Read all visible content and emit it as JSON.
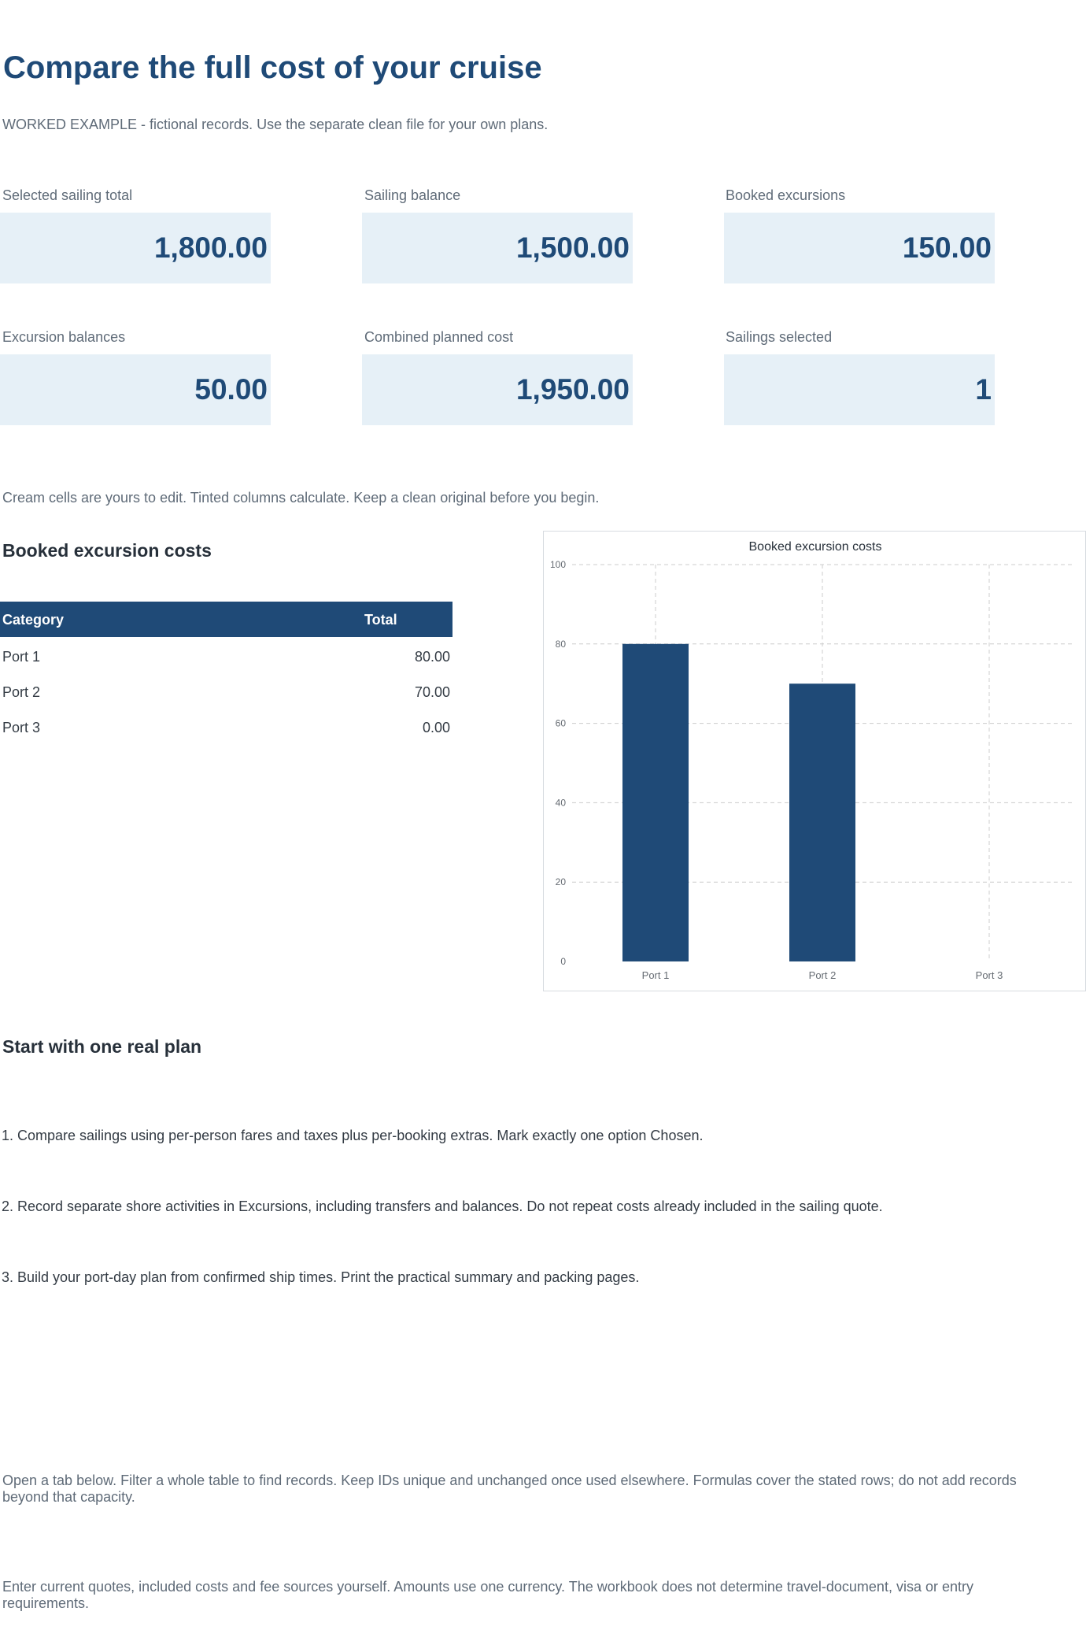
{
  "header": {
    "title": "Compare the full cost of your cruise",
    "subtitle": "WORKED EXAMPLE - fictional records. Use the separate clean file for your own plans."
  },
  "kpis": [
    {
      "label": "Selected sailing total",
      "value": "1,800.00"
    },
    {
      "label": "Sailing balance",
      "value": "1,500.00"
    },
    {
      "label": "Booked excursions",
      "value": "150.00"
    },
    {
      "label": "Excursion balances",
      "value": "50.00"
    },
    {
      "label": "Combined planned cost",
      "value": "1,950.00"
    },
    {
      "label": "Sailings selected",
      "value": "1"
    }
  ],
  "edit_note": "Cream cells are yours to edit. Tinted columns calculate. Keep a clean original before you begin.",
  "excursions": {
    "heading": "Booked excursion costs",
    "columns": {
      "category": "Category",
      "total": "Total"
    },
    "rows": [
      {
        "category": "Port 1",
        "total": "80.00"
      },
      {
        "category": "Port 2",
        "total": "70.00"
      },
      {
        "category": "Port 3",
        "total": "0.00"
      }
    ]
  },
  "chart_data": {
    "type": "bar",
    "title": "Booked excursion costs",
    "categories": [
      "Port 1",
      "Port 2",
      "Port 3"
    ],
    "values": [
      80,
      70,
      0
    ],
    "ylim": [
      0,
      100
    ],
    "yticks": [
      0,
      20,
      40,
      60,
      80,
      100
    ],
    "xlabel": "",
    "ylabel": "",
    "grid": true,
    "legend": "none",
    "bar_color": "#1f4a77"
  },
  "steps": {
    "heading": "Start with one real plan",
    "items": [
      "1. Compare sailings using per-person fares and taxes plus per-booking extras. Mark exactly one option Chosen.",
      "2. Record separate shore activities in Excursions, including transfers and balances. Do not repeat costs already included in the sailing quote.",
      "3. Build your port-day plan from confirmed ship times. Print the practical summary and packing pages."
    ]
  },
  "footer_notes": [
    "Open a tab below. Filter a whole table to find records. Keep IDs unique and unchanged once used elsewhere. Formulas cover the stated rows; do not add records beyond that capacity.",
    "Enter current quotes, included costs and fee sources yourself. Amounts use one currency. The workbook does not determine travel-document, visa or entry requirements."
  ],
  "colors": {
    "accent": "#1f4a77",
    "kpi_fill": "#e6f0f7",
    "muted_text": "#5f6b78"
  }
}
